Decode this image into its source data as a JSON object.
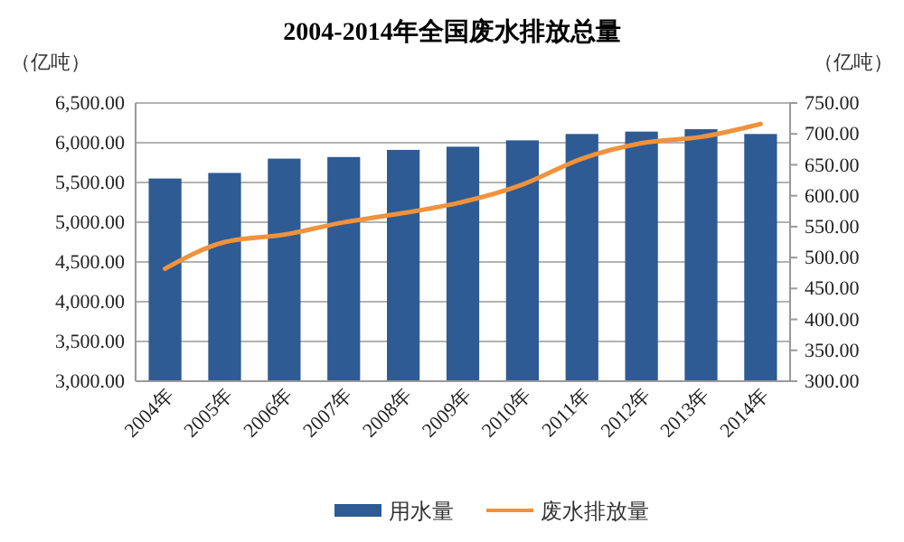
{
  "chart_data": {
    "type": "bar",
    "title": "2004-2014年全国废水排放总量",
    "ylabel": "（亿吨）",
    "y2label": "（亿吨）",
    "categories": [
      "2004年",
      "2005年",
      "2006年",
      "2007年",
      "2008年",
      "2009年",
      "2010年",
      "2011年",
      "2012年",
      "2013年",
      "2014年"
    ],
    "series": [
      {
        "name": "用水量",
        "color": "#2e5b94",
        "values": [
          5550,
          5620,
          5800,
          5820,
          5910,
          5950,
          6030,
          6110,
          6140,
          6170,
          6110
        ]
      },
      {
        "name": "废水排放量",
        "type": "line",
        "axis": "y2",
        "color": "#f0923c",
        "values": [
          482,
          525,
          537,
          557,
          572,
          590,
          618,
          660,
          685,
          695,
          716
        ]
      }
    ],
    "ylim": [
      3000,
      6500
    ],
    "yticks": [
      {
        "value": 3000,
        "label": "3,000.00"
      },
      {
        "value": 3500,
        "label": "3,500.00"
      },
      {
        "value": 4000,
        "label": "4,000.00"
      },
      {
        "value": 4500,
        "label": "4,500.00"
      },
      {
        "value": 5000,
        "label": "5,000.00"
      },
      {
        "value": 5500,
        "label": "5,500.00"
      },
      {
        "value": 6000,
        "label": "6,000.00"
      },
      {
        "value": 6500,
        "label": "6,500.00"
      }
    ],
    "y2lim": [
      300,
      750
    ],
    "y2ticks": [
      {
        "value": 300,
        "label": "300.00"
      },
      {
        "value": 350,
        "label": "350.00"
      },
      {
        "value": 400,
        "label": "400.00"
      },
      {
        "value": 450,
        "label": "450.00"
      },
      {
        "value": 500,
        "label": "500.00"
      },
      {
        "value": 550,
        "label": "550.00"
      },
      {
        "value": 600,
        "label": "600.00"
      },
      {
        "value": 650,
        "label": "650.00"
      },
      {
        "value": 700,
        "label": "700.00"
      },
      {
        "value": 750,
        "label": "750.00"
      }
    ],
    "grid": "y",
    "legend": "bottom"
  }
}
